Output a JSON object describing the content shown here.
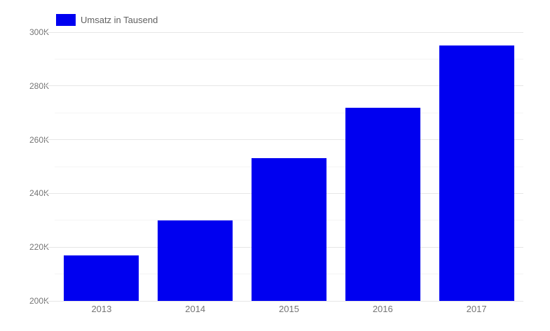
{
  "legend": {
    "label": "Umsatz in Tausend"
  },
  "colors": {
    "background": "#ffffff",
    "bar": "#0000f0",
    "grid_major": "#e6e6e6",
    "grid_minor": "#f4f4f4",
    "axis_text": "#757575",
    "legend_text": "#616161"
  },
  "chart_data": {
    "type": "bar",
    "title": "",
    "xlabel": "",
    "ylabel": "",
    "categories": [
      "2013",
      "2014",
      "2015",
      "2016",
      "2017"
    ],
    "series": [
      {
        "name": "Umsatz in Tausend",
        "values": [
          217,
          230,
          253,
          272,
          295
        ]
      }
    ],
    "unit": "K (Tausend)",
    "ylim": [
      200,
      300
    ],
    "y_major_step": 20,
    "y_minor_step": 10,
    "y_tick_labels": [
      "200K",
      "220K",
      "240K",
      "260K",
      "280K",
      "300K"
    ],
    "grid": true,
    "legend_position": "top-left",
    "bar_slot_fill": 0.8
  }
}
